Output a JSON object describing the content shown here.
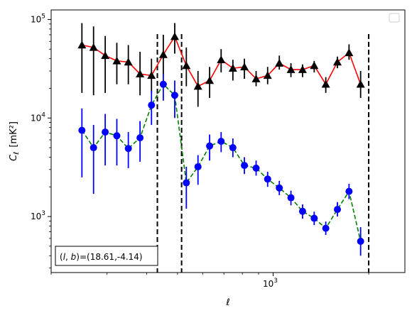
{
  "chart_data": {
    "type": "scatter",
    "title": "",
    "xlabel": "ℓ",
    "ylabel": "C_ℓ [mK²]",
    "xscale": "log",
    "yscale": "log",
    "xlim": [
      200,
      2600
    ],
    "ylim": [
      270,
      125000
    ],
    "grid": false,
    "legend": {
      "placement": "top-right",
      "entries": []
    },
    "x_ticks": [
      {
        "value": 1000,
        "base": "10",
        "exp": "3"
      }
    ],
    "y_ticks": [
      {
        "value": 1000,
        "base": "10",
        "exp": "3"
      },
      {
        "value": 10000,
        "base": "10",
        "exp": "4"
      },
      {
        "value": 100000,
        "base": "10",
        "exp": "5"
      }
    ],
    "vertical_lines": [
      {
        "x": 432,
        "color": "#000000",
        "style": "dashed"
      },
      {
        "x": 515,
        "color": "#000000",
        "style": "dashed"
      },
      {
        "x": 2000,
        "color": "#000000",
        "style": "dashed"
      }
    ],
    "annotation": {
      "text": "(l, b)=(18.61,-4.14)",
      "placement": "bottom-left"
    },
    "series": [
      {
        "marker": "triangle",
        "marker_color": "#000000",
        "line_color": "#ff0000",
        "line_style": "solid",
        "errorbar_color": "#000000",
        "points": [
          {
            "x": 250,
            "y": 55000,
            "lo": 18000,
            "hi": 92000
          },
          {
            "x": 272,
            "y": 52000,
            "lo": 17000,
            "hi": 85000
          },
          {
            "x": 296,
            "y": 43000,
            "lo": 18000,
            "hi": 68000
          },
          {
            "x": 322,
            "y": 38000,
            "lo": 22000,
            "hi": 58000
          },
          {
            "x": 350,
            "y": 37000,
            "lo": 22000,
            "hi": 55000
          },
          {
            "x": 381,
            "y": 28000,
            "lo": 17000,
            "hi": 47000
          },
          {
            "x": 414,
            "y": 27000,
            "lo": 18000,
            "hi": 40000
          },
          {
            "x": 451,
            "y": 44000,
            "lo": 27000,
            "hi": 70000
          },
          {
            "x": 490,
            "y": 67000,
            "lo": 45000,
            "hi": 92000
          },
          {
            "x": 533,
            "y": 34000,
            "lo": 21000,
            "hi": 52000
          },
          {
            "x": 580,
            "y": 21000,
            "lo": 13000,
            "hi": 30000
          },
          {
            "x": 631,
            "y": 24000,
            "lo": 16000,
            "hi": 33000
          },
          {
            "x": 686,
            "y": 39000,
            "lo": 29000,
            "hi": 50000
          },
          {
            "x": 747,
            "y": 32000,
            "lo": 24000,
            "hi": 39000
          },
          {
            "x": 812,
            "y": 33000,
            "lo": 25000,
            "hi": 40000
          },
          {
            "x": 884,
            "y": 25000,
            "lo": 21000,
            "hi": 30000
          },
          {
            "x": 961,
            "y": 27000,
            "lo": 22000,
            "hi": 33000
          },
          {
            "x": 1046,
            "y": 36000,
            "lo": 31000,
            "hi": 43000
          },
          {
            "x": 1138,
            "y": 31000,
            "lo": 26000,
            "hi": 36000
          },
          {
            "x": 1238,
            "y": 31000,
            "lo": 26000,
            "hi": 35000
          },
          {
            "x": 1347,
            "y": 34000,
            "lo": 29000,
            "hi": 38000
          },
          {
            "x": 1465,
            "y": 22000,
            "lo": 18000,
            "hi": 26000
          },
          {
            "x": 1594,
            "y": 37000,
            "lo": 32000,
            "hi": 42000
          },
          {
            "x": 1734,
            "y": 46000,
            "lo": 39000,
            "hi": 56000
          },
          {
            "x": 1886,
            "y": 22000,
            "lo": 16000,
            "hi": 30000
          }
        ]
      },
      {
        "marker": "circle",
        "marker_color": "#0000ff",
        "line_color": "#008000",
        "line_style": "dashed",
        "errorbar_color": "#0000ff",
        "points": [
          {
            "x": 250,
            "y": 7500,
            "lo": 2500,
            "hi": 12500
          },
          {
            "x": 272,
            "y": 5000,
            "lo": 1700,
            "hi": 8500
          },
          {
            "x": 296,
            "y": 7200,
            "lo": 3300,
            "hi": 11000
          },
          {
            "x": 322,
            "y": 6600,
            "lo": 3300,
            "hi": 9800
          },
          {
            "x": 350,
            "y": 4900,
            "lo": 3100,
            "hi": 7200
          },
          {
            "x": 381,
            "y": 6300,
            "lo": 3600,
            "hi": 9300
          },
          {
            "x": 414,
            "y": 13500,
            "lo": 8500,
            "hi": 19000
          },
          {
            "x": 451,
            "y": 22000,
            "lo": 15000,
            "hi": 28000
          },
          {
            "x": 490,
            "y": 17000,
            "lo": 10000,
            "hi": 24000
          },
          {
            "x": 533,
            "y": 2200,
            "lo": 1200,
            "hi": 3200
          },
          {
            "x": 580,
            "y": 3200,
            "lo": 2100,
            "hi": 4200
          },
          {
            "x": 631,
            "y": 5200,
            "lo": 3700,
            "hi": 6800
          },
          {
            "x": 686,
            "y": 5800,
            "lo": 4500,
            "hi": 7200
          },
          {
            "x": 747,
            "y": 5000,
            "lo": 4000,
            "hi": 6200
          },
          {
            "x": 812,
            "y": 3300,
            "lo": 2700,
            "hi": 4000
          },
          {
            "x": 884,
            "y": 3100,
            "lo": 2600,
            "hi": 3700
          },
          {
            "x": 961,
            "y": 2400,
            "lo": 2000,
            "hi": 2850
          },
          {
            "x": 1046,
            "y": 1950,
            "lo": 1650,
            "hi": 2300
          },
          {
            "x": 1138,
            "y": 1550,
            "lo": 1300,
            "hi": 1830
          },
          {
            "x": 1238,
            "y": 1130,
            "lo": 950,
            "hi": 1330
          },
          {
            "x": 1347,
            "y": 960,
            "lo": 820,
            "hi": 1120
          },
          {
            "x": 1465,
            "y": 760,
            "lo": 650,
            "hi": 890
          },
          {
            "x": 1594,
            "y": 1180,
            "lo": 1000,
            "hi": 1400
          },
          {
            "x": 1734,
            "y": 1800,
            "lo": 1500,
            "hi": 2150
          },
          {
            "x": 1886,
            "y": 560,
            "lo": 400,
            "hi": 780
          }
        ]
      }
    ]
  }
}
